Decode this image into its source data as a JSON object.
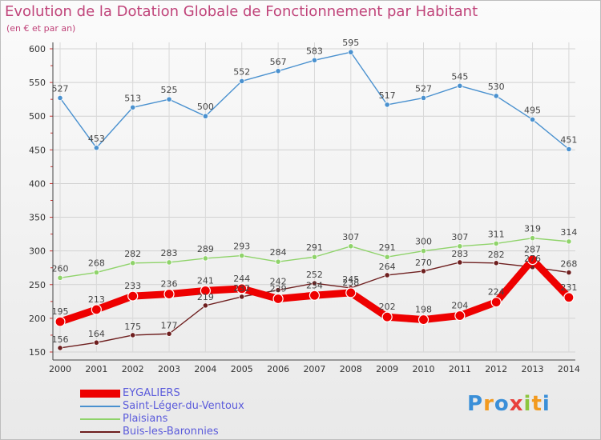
{
  "chart_data": {
    "type": "line",
    "title": "Evolution de la Dotation Globale de Fonctionnement par Habitant",
    "subtitle": "(en € et par an)",
    "xlabel": "",
    "ylabel": "",
    "ylim": [
      150,
      600
    ],
    "yticks": [
      150,
      200,
      250,
      300,
      350,
      400,
      450,
      500,
      550,
      600
    ],
    "grid": true,
    "categories": [
      "2000",
      "2001",
      "2002",
      "2003",
      "2004",
      "2005",
      "2006",
      "2007",
      "2008",
      "2009",
      "2010",
      "2011",
      "2012",
      "2013",
      "2014"
    ],
    "series": [
      {
        "name": "Buis-les-Baronnies",
        "color": "#6e1f1f",
        "thickness": "thin",
        "values": [
          156,
          164,
          175,
          177,
          219,
          232,
          242,
          252,
          245,
          264,
          270,
          283,
          282,
          276,
          268
        ]
      },
      {
        "name": "Plaisians",
        "color": "#8fd36a",
        "thickness": "thin",
        "values": [
          260,
          268,
          282,
          283,
          289,
          293,
          284,
          291,
          307,
          291,
          300,
          307,
          311,
          319,
          314
        ]
      },
      {
        "name": "Saint-Léger-du-Ventoux",
        "color": "#4a91cf",
        "thickness": "thin",
        "values": [
          527,
          453,
          513,
          525,
          500,
          552,
          567,
          583,
          595,
          517,
          527,
          545,
          530,
          495,
          451
        ]
      },
      {
        "name": "EYGALIERS",
        "color": "#ee0000",
        "thickness": "thick",
        "values": [
          195,
          213,
          233,
          236,
          241,
          244,
          229,
          234,
          238,
          202,
          198,
          204,
          224,
          287,
          231
        ]
      }
    ],
    "legend_order": [
      "EYGALIERS",
      "Saint-Léger-du-Ventoux",
      "Plaisians",
      "Buis-les-Baronnies"
    ],
    "legend_position": "bottom-left"
  },
  "brand": {
    "logo_letters": [
      "P",
      "r",
      "o",
      "x",
      "i",
      "t",
      "i"
    ],
    "logo_colors": [
      "#3a8fd8",
      "#f29a1f",
      "#3a8fd8",
      "#e8413c",
      "#8cc63f",
      "#f29a1f",
      "#3a8fd8"
    ]
  }
}
